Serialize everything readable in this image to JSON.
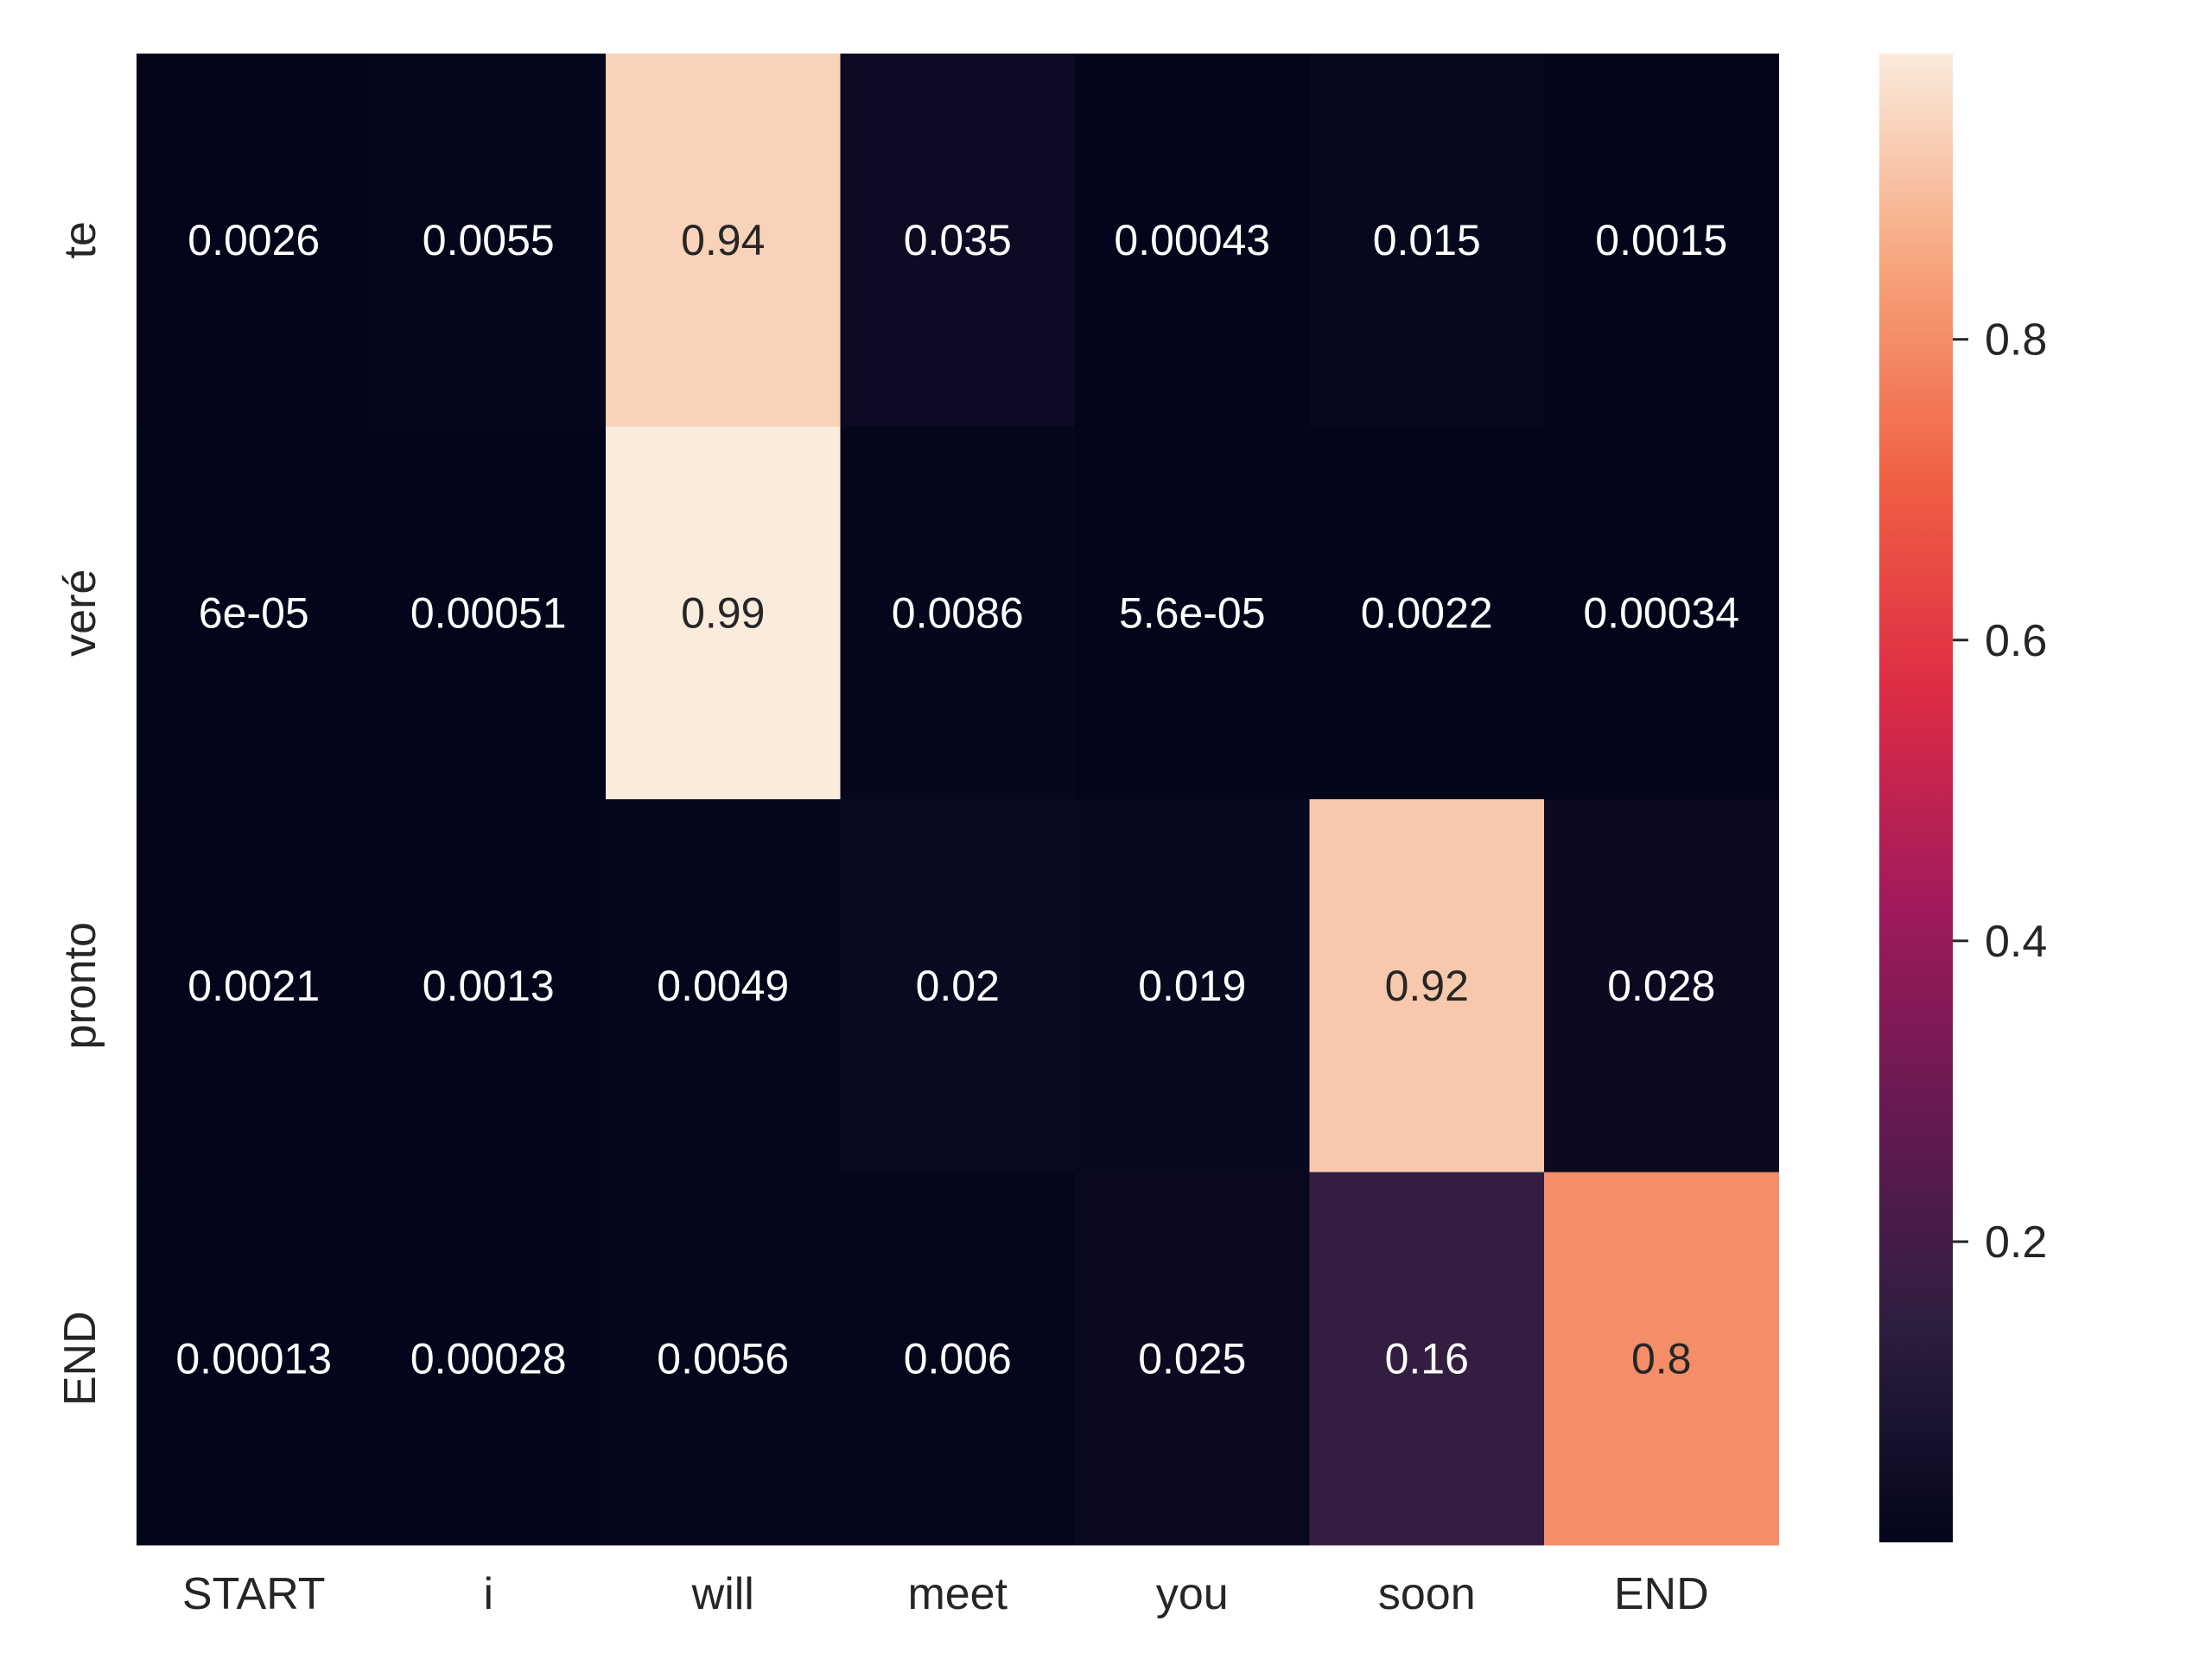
{
  "chart_data": {
    "type": "heatmap",
    "title": "",
    "xlabel": "",
    "ylabel": "",
    "x_categories": [
      "START",
      "i",
      "will",
      "meet",
      "you",
      "soon",
      "END"
    ],
    "y_categories": [
      "te",
      "veré",
      "pronto",
      "END"
    ],
    "values": [
      [
        0.0026,
        0.0055,
        0.94,
        0.035,
        0.00043,
        0.015,
        0.0015
      ],
      [
        6e-05,
        0.00051,
        0.99,
        0.0086,
        5.6e-05,
        0.0022,
        0.00034
      ],
      [
        0.0021,
        0.0013,
        0.0049,
        0.02,
        0.019,
        0.92,
        0.028
      ],
      [
        0.00013,
        0.00028,
        0.0056,
        0.006,
        0.025,
        0.16,
        0.8
      ]
    ],
    "annotations": [
      [
        "0.0026",
        "0.0055",
        "0.94",
        "0.035",
        "0.00043",
        "0.015",
        "0.0015"
      ],
      [
        "6e-05",
        "0.00051",
        "0.99",
        "0.0086",
        "5.6e-05",
        "0.0022",
        "0.00034"
      ],
      [
        "0.0021",
        "0.0013",
        "0.0049",
        "0.02",
        "0.019",
        "0.92",
        "0.028"
      ],
      [
        "0.00013",
        "0.00028",
        "0.0056",
        "0.006",
        "0.025",
        "0.16",
        "0.8"
      ]
    ],
    "colorbar": {
      "min": 5e-05,
      "max": 0.99,
      "ticks": [
        0.2,
        0.4,
        0.6,
        0.8
      ],
      "tick_labels": [
        "0.2",
        "0.4",
        "0.6",
        "0.8"
      ]
    },
    "colormap_stops": [
      "#03051a",
      "#2c1e3e",
      "#651a50",
      "#a11a5b",
      "#dd2c45",
      "#f06043",
      "#f6a47b",
      "#faebdd"
    ],
    "grid": false
  }
}
